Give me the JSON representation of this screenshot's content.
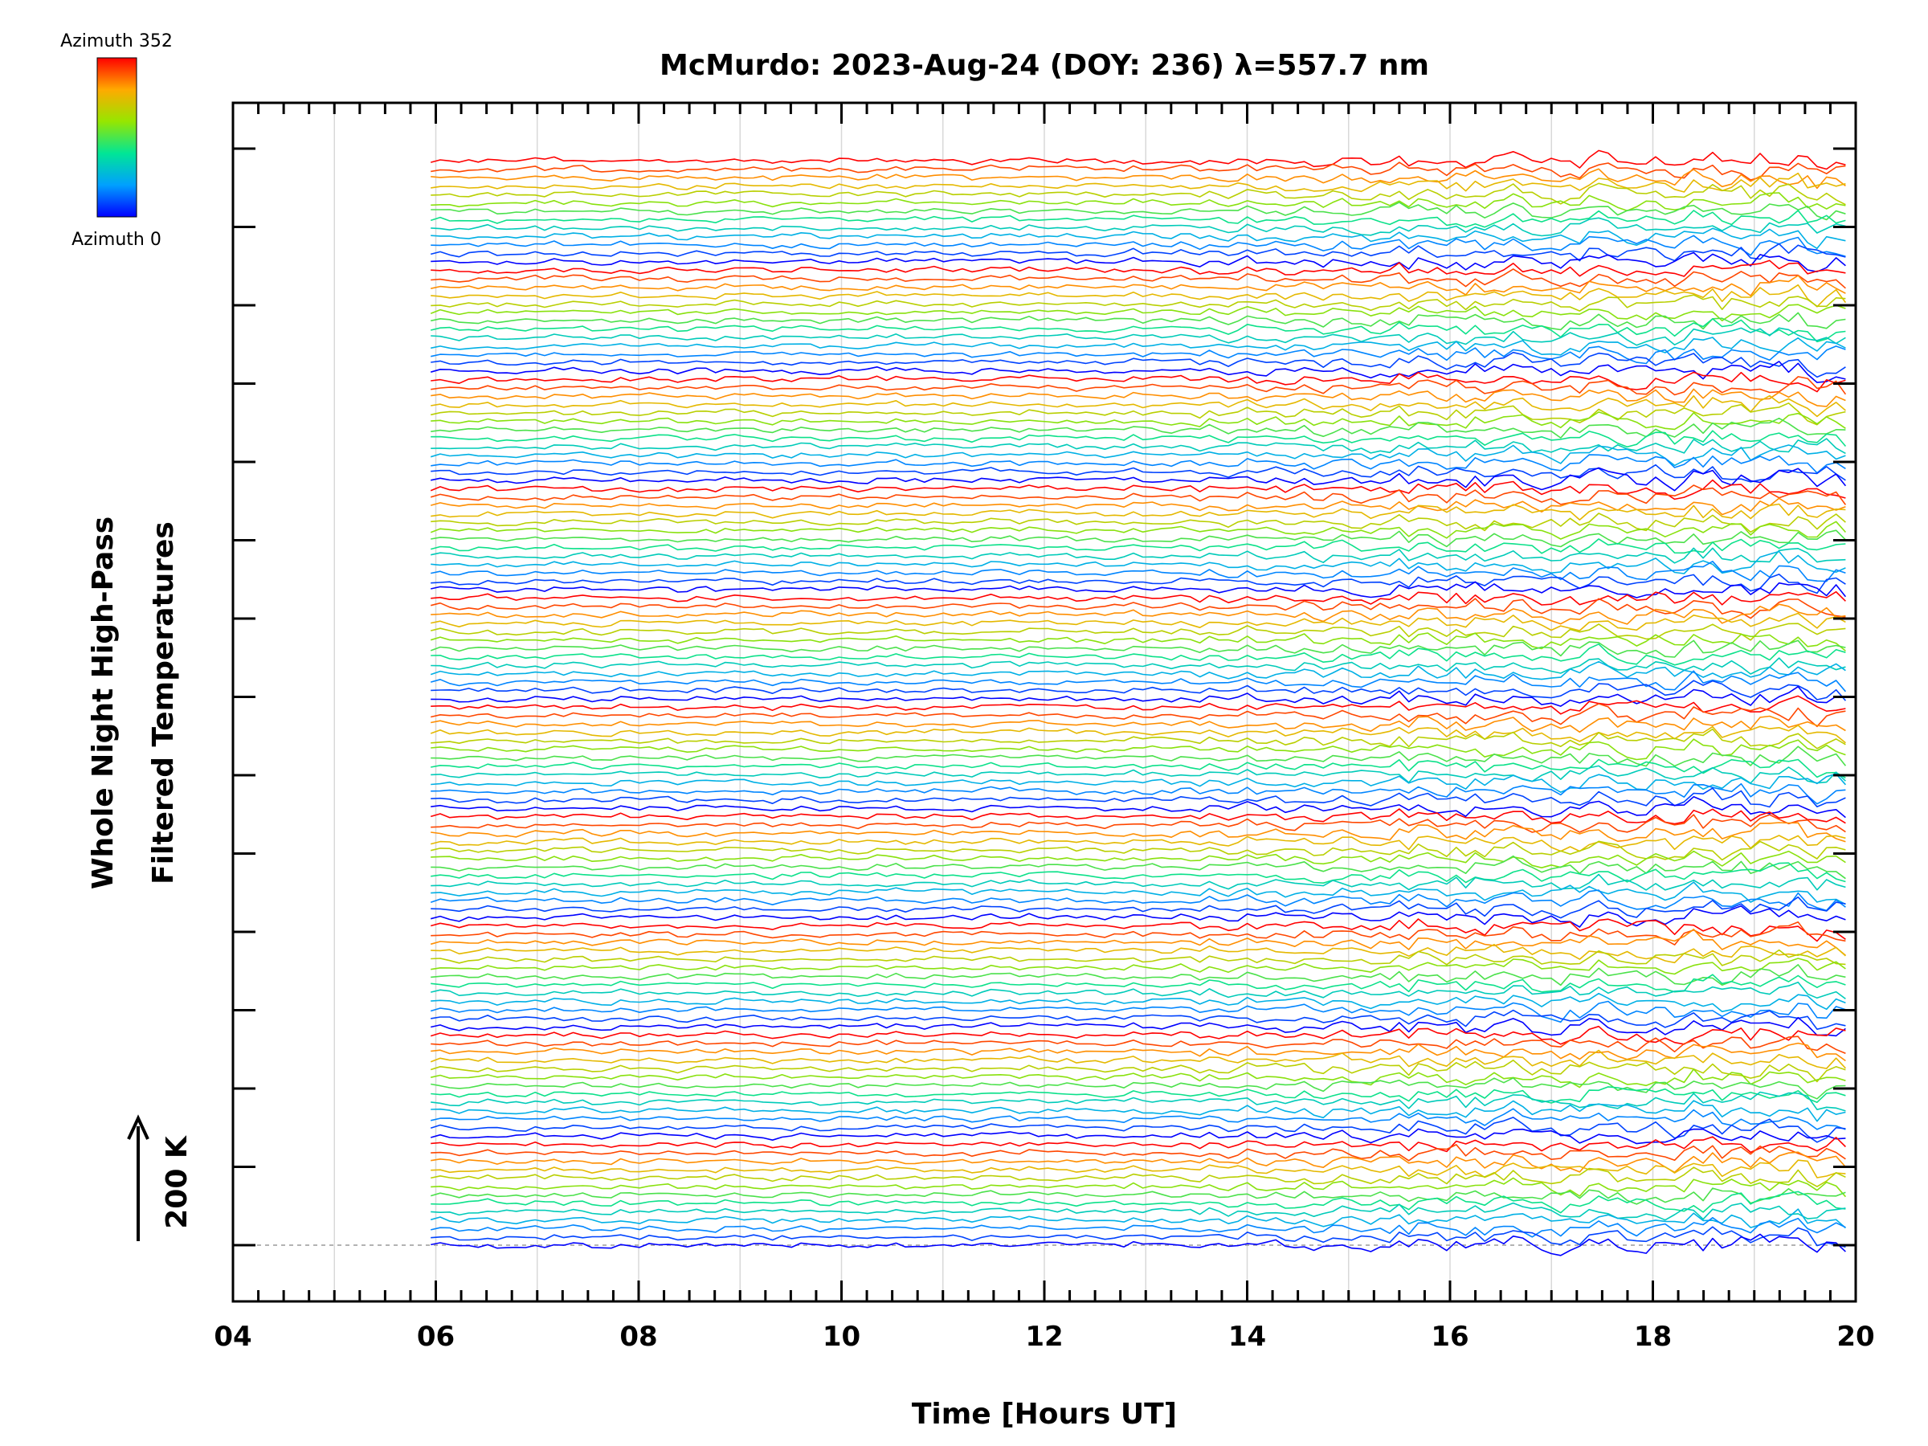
{
  "chart_data": {
    "type": "line",
    "title": "McMurdo: 2023-Aug-24 (DOY: 236) λ=557.7 nm",
    "xlabel": "Time [Hours UT]",
    "ylabel_line1": "Whole Night High-Pass",
    "ylabel_line2": "Filtered Temperatures",
    "xlim": [
      4,
      20
    ],
    "x_ticks": [
      "04",
      "06",
      "08",
      "10",
      "12",
      "14",
      "16",
      "18",
      "20"
    ],
    "x_data_range": [
      5.95,
      19.9
    ],
    "grid": "vertical lines every 1 hour",
    "scale_bar": {
      "label": "200 K",
      "value_K": 200
    },
    "series_count": 130,
    "group_count": 10,
    "azimuth_steps_per_group": 13,
    "colormap": "rainbow (blue = azimuth 0, red = azimuth 352)",
    "series_description": "Stacked high-pass filtered temperature traces, one per azimuth direction, offset vertically in groups",
    "y_axis_ticks_count": 15,
    "legend": {
      "top_label": "Azimuth  352",
      "bottom_label": "Azimuth  0",
      "azimuth_min": 0,
      "azimuth_max": 352
    }
  },
  "colors": {
    "axis": "#000000",
    "grid": "#d8d8d8",
    "baseline": "#9a9a9a"
  }
}
